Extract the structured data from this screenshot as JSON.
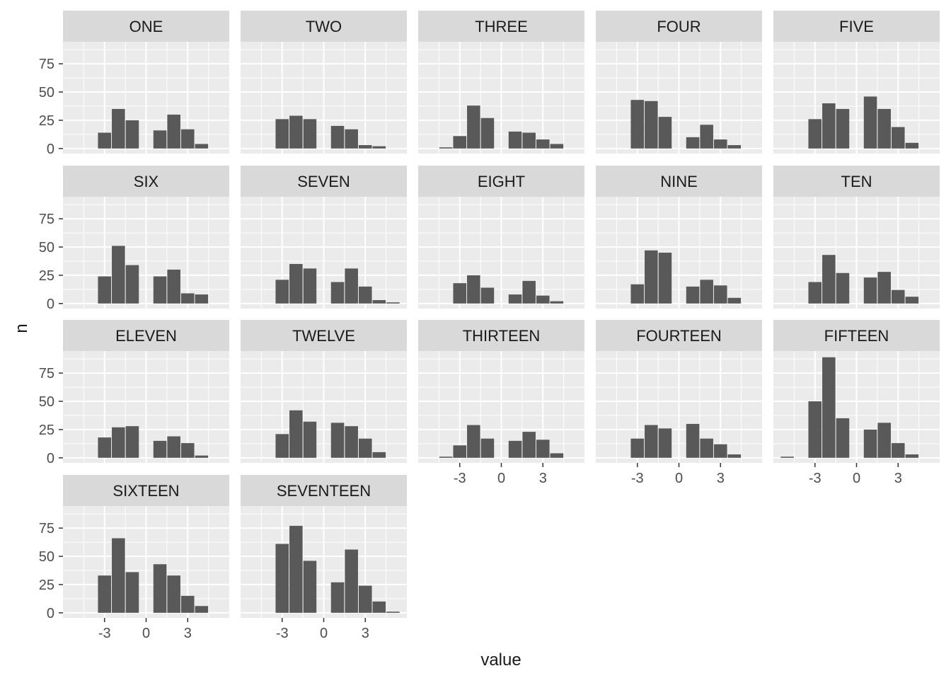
{
  "chart_data": {
    "type": "bar",
    "subtype": "faceted-histogram",
    "xlabel": "value",
    "ylabel": "n",
    "x_ticks": [
      -3,
      0,
      3
    ],
    "y_ticks": [
      0,
      25,
      50,
      75
    ],
    "xlim": [
      -6,
      6
    ],
    "ylim": [
      -4.5,
      94.5
    ],
    "grid": true,
    "ncol": 5,
    "colors": {
      "bar": "#595959",
      "panel_bg": "#ebebeb",
      "strip_bg": "#d9d9d9",
      "grid": "#ffffff",
      "text": "#4d4d4d",
      "title_text": "#1a1a1a"
    },
    "bin_centers": [
      -5,
      -4,
      -3,
      -2,
      -1,
      0,
      1,
      2,
      3,
      4,
      5
    ],
    "facets": [
      {
        "label": "ONE",
        "values": [
          0,
          0,
          14,
          35,
          25,
          0,
          16,
          30,
          17,
          4,
          0
        ]
      },
      {
        "label": "TWO",
        "values": [
          0,
          0,
          26,
          29,
          26,
          0,
          20,
          17,
          3,
          2,
          0
        ]
      },
      {
        "label": "THREE",
        "values": [
          0,
          1,
          11,
          38,
          27,
          0,
          15,
          14,
          8,
          4,
          0
        ]
      },
      {
        "label": "FOUR",
        "values": [
          0,
          0,
          43,
          42,
          28,
          0,
          10,
          21,
          8,
          3,
          0
        ]
      },
      {
        "label": "FIVE",
        "values": [
          0,
          0,
          26,
          40,
          35,
          0,
          46,
          35,
          19,
          5,
          0
        ]
      },
      {
        "label": "SIX",
        "values": [
          0,
          0,
          24,
          51,
          34,
          0,
          24,
          30,
          9,
          8,
          0
        ]
      },
      {
        "label": "SEVEN",
        "values": [
          0,
          0,
          21,
          35,
          31,
          0,
          19,
          31,
          15,
          3,
          1
        ]
      },
      {
        "label": "EIGHT",
        "values": [
          0,
          0,
          18,
          25,
          14,
          0,
          8,
          20,
          7,
          2,
          0
        ]
      },
      {
        "label": "NINE",
        "values": [
          0,
          0,
          17,
          47,
          45,
          0,
          15,
          21,
          16,
          5,
          0
        ]
      },
      {
        "label": "TEN",
        "values": [
          0,
          0,
          19,
          43,
          27,
          0,
          23,
          28,
          12,
          6,
          0
        ]
      },
      {
        "label": "ELEVEN",
        "values": [
          0,
          0,
          18,
          27,
          28,
          0,
          15,
          19,
          13,
          2,
          0
        ]
      },
      {
        "label": "TWELVE",
        "values": [
          0,
          0,
          21,
          42,
          32,
          0,
          31,
          28,
          17,
          5,
          0
        ]
      },
      {
        "label": "THIRTEEN",
        "values": [
          0,
          1,
          11,
          29,
          17,
          0,
          15,
          23,
          16,
          4,
          0
        ]
      },
      {
        "label": "FOURTEEN",
        "values": [
          0,
          0,
          17,
          29,
          26,
          0,
          30,
          17,
          12,
          3,
          0
        ]
      },
      {
        "label": "FIFTEEN",
        "values": [
          1,
          0,
          50,
          89,
          35,
          0,
          25,
          31,
          13,
          3,
          0
        ]
      },
      {
        "label": "SIXTEEN",
        "values": [
          0,
          0,
          33,
          66,
          36,
          0,
          43,
          33,
          15,
          6,
          0
        ]
      },
      {
        "label": "SEVENTEEN",
        "values": [
          0,
          0,
          61,
          77,
          46,
          0,
          27,
          56,
          24,
          10,
          1
        ]
      }
    ]
  }
}
